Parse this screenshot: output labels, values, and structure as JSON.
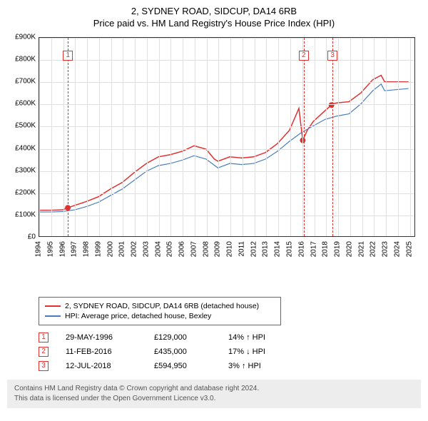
{
  "title": "2, SYDNEY ROAD, SIDCUP, DA14 6RB",
  "subtitle": "Price paid vs. HM Land Registry's House Price Index (HPI)",
  "chart": {
    "type": "line",
    "background_color": "#ffffff",
    "grid_color": "#e0e0e0",
    "border_color": "#333333",
    "xlim": [
      1994,
      2025.5
    ],
    "ylim": [
      0,
      900000
    ],
    "ytick_step": 100000,
    "ytick_labels": [
      "£0",
      "£100K",
      "£200K",
      "£300K",
      "£400K",
      "£500K",
      "£600K",
      "£700K",
      "£800K",
      "£900K"
    ],
    "xticks": [
      1994,
      1995,
      1996,
      1997,
      1998,
      1999,
      2000,
      2001,
      2002,
      2003,
      2004,
      2005,
      2006,
      2007,
      2008,
      2009,
      2010,
      2011,
      2012,
      2013,
      2014,
      2015,
      2016,
      2017,
      2018,
      2019,
      2020,
      2021,
      2022,
      2023,
      2024,
      2025
    ],
    "series": [
      {
        "name": "2, SYDNEY ROAD, SIDCUP, DA14 6RB (detached house)",
        "color": "#e03030",
        "line_width": 1.5,
        "data": [
          [
            1994,
            118
          ],
          [
            1995,
            118
          ],
          [
            1996,
            120
          ],
          [
            1996.4,
            129
          ],
          [
            1997,
            140
          ],
          [
            1998,
            158
          ],
          [
            1999,
            180
          ],
          [
            2000,
            215
          ],
          [
            2001,
            245
          ],
          [
            2002,
            290
          ],
          [
            2003,
            330
          ],
          [
            2004,
            360
          ],
          [
            2005,
            370
          ],
          [
            2006,
            385
          ],
          [
            2007,
            410
          ],
          [
            2008,
            395
          ],
          [
            2008.7,
            350
          ],
          [
            2009,
            340
          ],
          [
            2010,
            360
          ],
          [
            2011,
            355
          ],
          [
            2012,
            360
          ],
          [
            2013,
            380
          ],
          [
            2014,
            420
          ],
          [
            2015,
            480
          ],
          [
            2015.8,
            580
          ],
          [
            2016.12,
            435
          ],
          [
            2016.5,
            480
          ],
          [
            2017,
            520
          ],
          [
            2018,
            570
          ],
          [
            2018.53,
            594.95
          ],
          [
            2018.6,
            600
          ],
          [
            2019,
            605
          ],
          [
            2020,
            610
          ],
          [
            2021,
            650
          ],
          [
            2022,
            710
          ],
          [
            2022.7,
            730
          ],
          [
            2023,
            700
          ],
          [
            2024,
            700
          ],
          [
            2025,
            700
          ]
        ]
      },
      {
        "name": "HPI: Average price, detached house, Bexley",
        "color": "#4a7ebb",
        "line_width": 1.2,
        "data": [
          [
            1994,
            110
          ],
          [
            1995,
            110
          ],
          [
            1996,
            112
          ],
          [
            1997,
            120
          ],
          [
            1998,
            135
          ],
          [
            1999,
            155
          ],
          [
            2000,
            185
          ],
          [
            2001,
            215
          ],
          [
            2002,
            255
          ],
          [
            2003,
            295
          ],
          [
            2004,
            320
          ],
          [
            2005,
            330
          ],
          [
            2006,
            345
          ],
          [
            2007,
            365
          ],
          [
            2008,
            350
          ],
          [
            2009,
            310
          ],
          [
            2010,
            330
          ],
          [
            2011,
            325
          ],
          [
            2012,
            330
          ],
          [
            2013,
            350
          ],
          [
            2014,
            385
          ],
          [
            2015,
            430
          ],
          [
            2016,
            470
          ],
          [
            2017,
            500
          ],
          [
            2018,
            530
          ],
          [
            2019,
            545
          ],
          [
            2020,
            555
          ],
          [
            2021,
            600
          ],
          [
            2022,
            660
          ],
          [
            2022.7,
            690
          ],
          [
            2023,
            660
          ],
          [
            2024,
            665
          ],
          [
            2025,
            670
          ]
        ]
      }
    ],
    "sale_markers": [
      {
        "n": "1",
        "x": 1996.4,
        "y": 129
      },
      {
        "n": "2",
        "x": 2016.12,
        "y": 435
      },
      {
        "n": "3",
        "x": 2018.53,
        "y": 594.95
      }
    ],
    "marker_color": "#e03030",
    "marker_dash": "4,3",
    "label_fontsize": 10
  },
  "legend": {
    "items": [
      {
        "color": "#e03030",
        "label": "2, SYDNEY ROAD, SIDCUP, DA14 6RB (detached house)"
      },
      {
        "color": "#4a7ebb",
        "label": "HPI: Average price, detached house, Bexley"
      }
    ]
  },
  "sales": [
    {
      "n": "1",
      "date": "29-MAY-1996",
      "price": "£129,000",
      "diff": "14% ↑ HPI"
    },
    {
      "n": "2",
      "date": "11-FEB-2016",
      "price": "£435,000",
      "diff": "17% ↓ HPI"
    },
    {
      "n": "3",
      "date": "12-JUL-2018",
      "price": "£594,950",
      "diff": "3% ↑ HPI"
    }
  ],
  "footer": {
    "line1": "Contains HM Land Registry data © Crown copyright and database right 2024.",
    "line2": "This data is licensed under the Open Government Licence v3.0."
  }
}
